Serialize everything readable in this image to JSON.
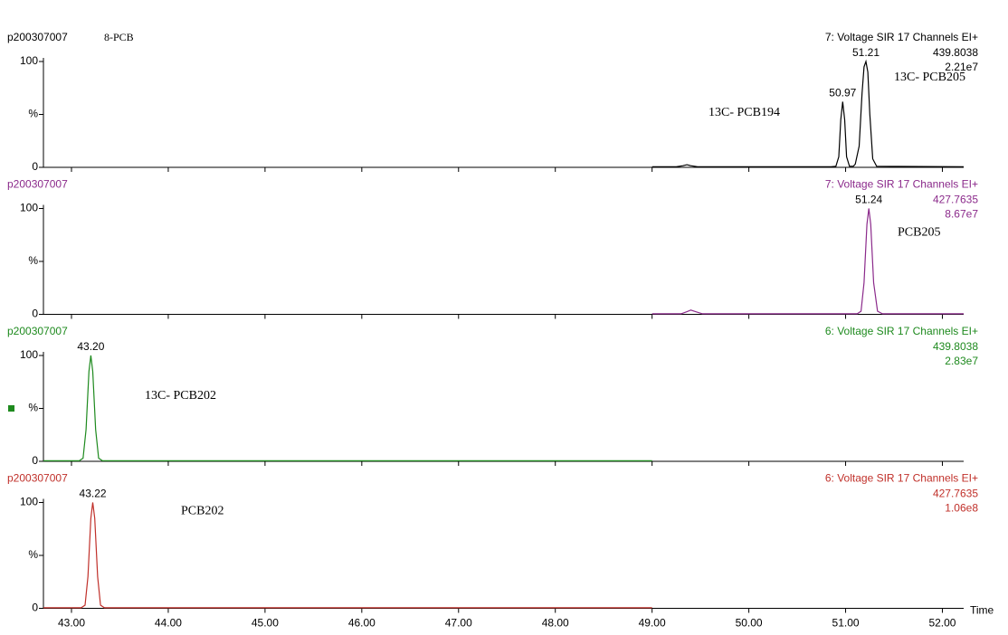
{
  "chart_data": [
    {
      "type": "line",
      "title": "p200307007",
      "subtitle": "8-PCB",
      "channel": "7: Voltage SIR 17 Channels EI+",
      "mass": "439.8038",
      "intensity": "2.21e7",
      "xlim": [
        42.71,
        52.22
      ],
      "xticks": [
        43,
        44,
        45,
        46,
        47,
        48,
        49,
        50,
        51,
        52
      ],
      "ylim": [
        0,
        100
      ],
      "yticks": [
        0,
        {
          "value": 50,
          "label": "%"
        },
        100
      ],
      "x": [
        49.0,
        49.25,
        49.32,
        49.36,
        49.4,
        49.47,
        50.85,
        50.9,
        50.93,
        50.95,
        50.97,
        50.99,
        51.01,
        51.04,
        51.08,
        51.1,
        51.14,
        51.17,
        51.19,
        51.21,
        51.23,
        51.25,
        51.28,
        51.32,
        52.22
      ],
      "series": [
        {
          "color": "#000000",
          "values": [
            0.5,
            0.5,
            1.5,
            2.5,
            1.5,
            0.5,
            0.5,
            1,
            10,
            45,
            62,
            45,
            10,
            1,
            1,
            3,
            20,
            70,
            95,
            100,
            90,
            50,
            8,
            1,
            0.5
          ]
        }
      ],
      "peak_labels": [
        {
          "value": 50.97,
          "label": "50.97"
        },
        {
          "value": 51.21,
          "label": "51.21"
        }
      ],
      "annotations": [
        "13C- PCB194",
        "13C- PCB205"
      ]
    },
    {
      "type": "line",
      "title": "p200307007",
      "channel": "7: Voltage SIR 17 Channels EI+",
      "mass": "427.7635",
      "intensity": "8.67e7",
      "xlim": [
        42.71,
        52.22
      ],
      "xticks": [
        43,
        44,
        45,
        46,
        47,
        48,
        49,
        50,
        51,
        52
      ],
      "ylim": [
        0,
        100
      ],
      "yticks": [
        0,
        {
          "value": 50,
          "label": "%"
        },
        100
      ],
      "x": [
        49.0,
        49.3,
        49.36,
        49.4,
        49.45,
        49.52,
        51.12,
        51.16,
        51.19,
        51.22,
        51.24,
        51.26,
        51.29,
        51.33,
        51.38,
        52.22
      ],
      "series": [
        {
          "color": "#8b2a8b",
          "values": [
            0.5,
            0.5,
            2.5,
            4,
            2.5,
            0.5,
            0.5,
            3,
            30,
            85,
            100,
            85,
            30,
            3,
            0.5,
            0.5
          ]
        }
      ],
      "peak_labels": [
        {
          "value": 51.24,
          "label": "51.24"
        }
      ],
      "annotations": [
        "PCB205"
      ]
    },
    {
      "type": "line",
      "title": "p200307007",
      "channel": "6: Voltage SIR 17 Channels EI+",
      "mass": "439.8038",
      "intensity": "2.83e7",
      "xlim": [
        42.71,
        52.22
      ],
      "xticks": [
        43,
        44,
        45,
        46,
        47,
        48,
        49,
        50,
        51,
        52
      ],
      "ylim": [
        0,
        100
      ],
      "yticks": [
        0,
        {
          "value": 50,
          "label": "%"
        },
        100
      ],
      "x": [
        42.71,
        43.08,
        43.12,
        43.15,
        43.18,
        43.2,
        43.22,
        43.25,
        43.28,
        43.32,
        49.0
      ],
      "series": [
        {
          "color": "#1e8a1e",
          "values": [
            0.5,
            0.5,
            3,
            30,
            85,
            100,
            85,
            30,
            3,
            0.5,
            0.5
          ]
        }
      ],
      "peak_labels": [
        {
          "value": 43.2,
          "label": "43.20"
        }
      ],
      "annotations": [
        "13C- PCB202"
      ]
    },
    {
      "type": "line",
      "title": "p200307007",
      "channel": "6: Voltage SIR 17 Channels EI+",
      "mass": "427.7635",
      "intensity": "1.06e8",
      "xlim": [
        42.71,
        52.22
      ],
      "xticks": [
        {
          "value": 43,
          "label": "43.00"
        },
        {
          "value": 44,
          "label": "44.00"
        },
        {
          "value": 45,
          "label": "45.00"
        },
        {
          "value": 46,
          "label": "46.00"
        },
        {
          "value": 47,
          "label": "47.00"
        },
        {
          "value": 48,
          "label": "48.00"
        },
        {
          "value": 49,
          "label": "49.00"
        },
        {
          "value": 50,
          "label": "50.00"
        },
        {
          "value": 51,
          "label": "51.00"
        },
        {
          "value": 52,
          "label": "52.00"
        }
      ],
      "xlabel": "Time",
      "ylim": [
        0,
        100
      ],
      "yticks": [
        0,
        {
          "value": 50,
          "label": "%"
        },
        100
      ],
      "x": [
        42.71,
        43.1,
        43.14,
        43.17,
        43.2,
        43.22,
        43.24,
        43.27,
        43.3,
        43.34,
        49.0
      ],
      "series": [
        {
          "color": "#c0302a",
          "values": [
            0.5,
            0.5,
            3,
            30,
            85,
            100,
            85,
            30,
            3,
            0.5,
            0.5
          ]
        }
      ],
      "peak_labels": [
        {
          "value": 43.22,
          "label": "43.22"
        }
      ],
      "annotations": [
        "PCB202"
      ]
    }
  ]
}
